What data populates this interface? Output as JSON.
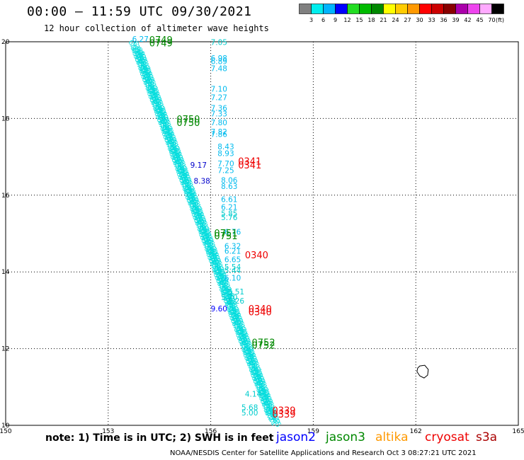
{
  "header": {
    "title": "00:00 – 11:59 UTC 09/30/2021",
    "subtitle": "12 hour collection of altimeter wave heights"
  },
  "legend": {
    "unit_label": "(ft)",
    "labels": [
      "3",
      "6",
      "9",
      "12",
      "15",
      "18",
      "21",
      "24",
      "27",
      "30",
      "33",
      "36",
      "39",
      "42",
      "45",
      "70"
    ],
    "colors": [
      "#808080",
      "#00eeee",
      "#00b4ff",
      "#0000ff",
      "#22dd22",
      "#00bb00",
      "#008800",
      "#ffff00",
      "#ffcc00",
      "#ff9900",
      "#ff0000",
      "#cc0000",
      "#880000",
      "#aa00aa",
      "#ee44ee",
      "#ffaaff",
      "#000000"
    ]
  },
  "footer": {
    "note": "note: 1) Time is in UTC; 2) SWH is in feet",
    "satellites": [
      {
        "name": "jason2",
        "color": "#0000ff"
      },
      {
        "name": "jason3",
        "color": "#008800"
      },
      {
        "name": "altika",
        "color": "#ff9900"
      },
      {
        "name": "cryosat",
        "color": "#ee0000"
      },
      {
        "name": "s3a",
        "color": "#aa0000"
      }
    ],
    "credit": "NOAA/NESDIS Center for Satellite Applications and Research    Oct  3 08:27:21 UTC 2021"
  },
  "chart_data": {
    "type": "scatter",
    "title": "",
    "xlabel": "",
    "ylabel": "",
    "xlim": [
      150,
      165
    ],
    "ylim": [
      10,
      20
    ],
    "x_ticks": [
      "150",
      "153",
      "156",
      "159",
      "162",
      "165"
    ],
    "y_ticks": [
      "10",
      "12",
      "14",
      "16",
      "18",
      "20"
    ],
    "grid": true,
    "track": {
      "color": "#00dddd",
      "start": [
        153.6,
        20.0
      ],
      "end": [
        157.6,
        10.3
      ],
      "count": 260,
      "values_sample": [
        "6.27",
        "6.89",
        "7.25",
        "7.70",
        "8.06",
        "8.63",
        "6.21",
        "6.65",
        "5.44",
        "5.51",
        "5.26",
        "9.17",
        "8.38",
        "9.60"
      ]
    },
    "labels": [
      {
        "x": 156.0,
        "y": 19.92,
        "text": "7.05",
        "color": "#00cccc"
      },
      {
        "x": 156.0,
        "y": 19.5,
        "text": "6.98",
        "color": "#00bbee"
      },
      {
        "x": 156.0,
        "y": 19.42,
        "text": "6.89",
        "color": "#00bbee"
      },
      {
        "x": 156.0,
        "y": 19.23,
        "text": "7.48",
        "color": "#00bbee"
      },
      {
        "x": 156.0,
        "y": 18.7,
        "text": "7.10",
        "color": "#00bbee"
      },
      {
        "x": 156.0,
        "y": 18.48,
        "text": "7.27",
        "color": "#00bbee"
      },
      {
        "x": 156.0,
        "y": 18.2,
        "text": "7.36",
        "color": "#00bbee"
      },
      {
        "x": 156.0,
        "y": 18.05,
        "text": "7.33",
        "color": "#00bbee"
      },
      {
        "x": 156.0,
        "y": 17.82,
        "text": "7.80",
        "color": "#00bbee"
      },
      {
        "x": 156.0,
        "y": 17.58,
        "text": "7.82",
        "color": "#00bbee"
      },
      {
        "x": 156.0,
        "y": 17.52,
        "text": "7.86",
        "color": "#00bbee"
      },
      {
        "x": 156.2,
        "y": 17.2,
        "text": "8.43",
        "color": "#00bbee"
      },
      {
        "x": 156.2,
        "y": 17.02,
        "text": "8.93",
        "color": "#00bbee"
      },
      {
        "x": 156.2,
        "y": 16.75,
        "text": "7.70",
        "color": "#00bbee"
      },
      {
        "x": 156.2,
        "y": 16.58,
        "text": "7.25",
        "color": "#00bbee"
      },
      {
        "x": 156.3,
        "y": 16.32,
        "text": "8.06",
        "color": "#00bbee"
      },
      {
        "x": 156.3,
        "y": 16.16,
        "text": "8.63",
        "color": "#00bbee"
      },
      {
        "x": 156.3,
        "y": 15.82,
        "text": "6.61",
        "color": "#00bbee"
      },
      {
        "x": 156.3,
        "y": 15.62,
        "text": "6.21",
        "color": "#00bbee"
      },
      {
        "x": 156.3,
        "y": 15.45,
        "text": "5.85",
        "color": "#00cccc"
      },
      {
        "x": 156.3,
        "y": 15.35,
        "text": "5.76",
        "color": "#00cccc"
      },
      {
        "x": 156.4,
        "y": 14.97,
        "text": "6.76",
        "color": "#00bbee"
      },
      {
        "x": 156.4,
        "y": 14.6,
        "text": "6.32",
        "color": "#00bbee"
      },
      {
        "x": 156.4,
        "y": 14.47,
        "text": "6.21",
        "color": "#00bbee"
      },
      {
        "x": 156.4,
        "y": 14.25,
        "text": "6.65",
        "color": "#00bbee"
      },
      {
        "x": 156.4,
        "y": 14.06,
        "text": "5.54",
        "color": "#00cccc"
      },
      {
        "x": 156.4,
        "y": 13.97,
        "text": "5.44",
        "color": "#00cccc"
      },
      {
        "x": 156.4,
        "y": 13.77,
        "text": "6.10",
        "color": "#00bbee"
      },
      {
        "x": 156.5,
        "y": 13.41,
        "text": "5.51",
        "color": "#00cccc"
      },
      {
        "x": 156.3,
        "y": 13.27,
        "text": "5.70",
        "color": "#00cccc"
      },
      {
        "x": 156.5,
        "y": 13.17,
        "text": "5.26",
        "color": "#00cccc"
      },
      {
        "x": 156.0,
        "y": 12.97,
        "text": "9.60",
        "color": "#0000ff"
      },
      {
        "x": 153.7,
        "y": 20.0,
        "text": "6.27",
        "color": "#00bbee"
      },
      {
        "x": 155.4,
        "y": 16.72,
        "text": "9.17",
        "color": "#0000cc"
      },
      {
        "x": 155.5,
        "y": 16.3,
        "text": "8.38",
        "color": "#0000cc"
      },
      {
        "x": 157.0,
        "y": 10.75,
        "text": "4.14",
        "color": "#00cccc"
      },
      {
        "x": 156.9,
        "y": 10.4,
        "text": "5.68",
        "color": "#00cccc"
      },
      {
        "x": 156.9,
        "y": 10.26,
        "text": "5.00",
        "color": "#00cccc"
      }
    ],
    "time_labels": [
      {
        "x": 154.2,
        "y": 19.96,
        "text": "0749",
        "color": "#008800"
      },
      {
        "x": 154.2,
        "y": 19.88,
        "text": "0749",
        "color": "#008800"
      },
      {
        "x": 155.0,
        "y": 17.9,
        "text": "0750",
        "color": "#008800"
      },
      {
        "x": 155.0,
        "y": 17.8,
        "text": "0750",
        "color": "#008800"
      },
      {
        "x": 156.8,
        "y": 16.8,
        "text": "0341",
        "color": "#ee0000"
      },
      {
        "x": 156.8,
        "y": 16.7,
        "text": "0341",
        "color": "#ee0000"
      },
      {
        "x": 156.1,
        "y": 14.93,
        "text": "0751",
        "color": "#008800"
      },
      {
        "x": 156.1,
        "y": 14.85,
        "text": "0751",
        "color": "#008800"
      },
      {
        "x": 157.0,
        "y": 14.35,
        "text": "0340",
        "color": "#ee0000"
      },
      {
        "x": 157.1,
        "y": 12.95,
        "text": "0340",
        "color": "#ee0000"
      },
      {
        "x": 157.1,
        "y": 12.87,
        "text": "0340",
        "color": "#ee0000"
      },
      {
        "x": 157.2,
        "y": 12.08,
        "text": "0752",
        "color": "#008800"
      },
      {
        "x": 157.2,
        "y": 12.0,
        "text": "0752",
        "color": "#008800"
      },
      {
        "x": 157.8,
        "y": 10.3,
        "text": "0339",
        "color": "#ee0000"
      },
      {
        "x": 157.8,
        "y": 10.2,
        "text": "0339",
        "color": "#ee0000"
      }
    ],
    "island": {
      "center": [
        162.2,
        11.4
      ]
    }
  }
}
